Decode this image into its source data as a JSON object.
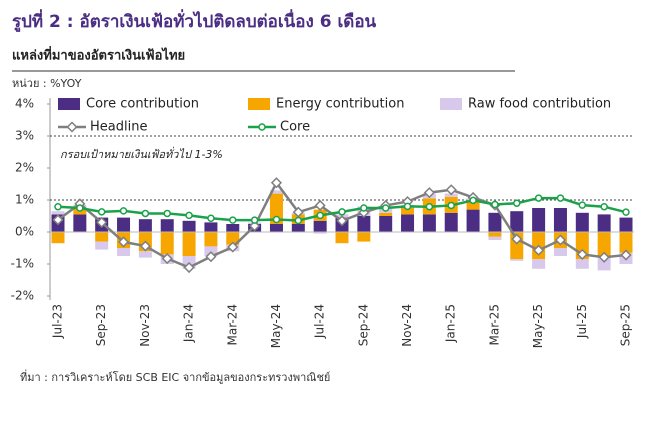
{
  "header": {
    "title": "รูปที่ 2 : อัตราเงินเฟ้อทั่วไปติดลบต่อเนื่อง 6 เดือน",
    "subtitle": "แหล่งที่มาของอัตราเงินเฟ้อไทย",
    "unit": "หน่วย : %YOY"
  },
  "chart_data": {
    "type": "bar",
    "categories": [
      "Jul-23",
      null,
      "Sep-23",
      null,
      "Nov-23",
      null,
      "Jan-24",
      null,
      "Mar-24",
      null,
      "May-24",
      null,
      "Jul-24",
      null,
      "Sep-24",
      null,
      "Nov-24",
      null,
      "Jan-25",
      null,
      "Mar-25",
      null,
      "May-25",
      null,
      "Jul-25",
      null,
      "Sep-25"
    ],
    "series": [
      {
        "name": "Core contribution",
        "type": "bar",
        "color": "#4b2d83",
        "values": [
          0.55,
          0.55,
          0.45,
          0.45,
          0.4,
          0.4,
          0.35,
          0.3,
          0.25,
          0.25,
          0.25,
          0.25,
          0.35,
          0.45,
          0.5,
          0.5,
          0.55,
          0.55,
          0.6,
          0.7,
          0.6,
          0.65,
          0.75,
          0.75,
          0.6,
          0.55,
          0.45
        ]
      },
      {
        "name": "Energy contribution",
        "type": "bar",
        "color": "#f7a600",
        "values": [
          -0.35,
          0.2,
          -0.3,
          -0.5,
          -0.6,
          -0.7,
          -0.75,
          -0.45,
          -0.4,
          0,
          0.95,
          0.3,
          0.35,
          -0.35,
          -0.3,
          0.1,
          0.2,
          0.5,
          0.5,
          0.3,
          -0.15,
          -0.85,
          -0.85,
          -0.5,
          -0.85,
          -0.8,
          -0.65
        ]
      },
      {
        "name": "Raw food contribution",
        "type": "bar",
        "color": "#d8c8ec",
        "values": [
          0.1,
          0.1,
          -0.25,
          -0.25,
          -0.2,
          -0.3,
          -0.4,
          -0.3,
          -0.2,
          0.05,
          0.1,
          0.05,
          -0.05,
          0.1,
          0.3,
          0.2,
          0.1,
          0.15,
          0.1,
          0.05,
          -0.1,
          -0.05,
          -0.3,
          -0.25,
          -0.3,
          -0.4,
          -0.35
        ]
      },
      {
        "name": "Headline",
        "type": "line",
        "marker": "diamond",
        "color": "#7f7f7f",
        "values": [
          0.38,
          0.88,
          0.3,
          -0.31,
          -0.44,
          -0.83,
          -1.11,
          -0.77,
          -0.47,
          0.19,
          1.54,
          0.62,
          0.83,
          0.35,
          0.61,
          0.83,
          0.95,
          1.23,
          1.32,
          1.08,
          0.84,
          -0.22,
          -0.57,
          -0.25,
          -0.7,
          -0.79,
          -0.72
        ]
      },
      {
        "name": "Core",
        "type": "line",
        "marker": "circle",
        "color": "#1aa24a",
        "values": [
          0.79,
          0.75,
          0.63,
          0.66,
          0.58,
          0.58,
          0.52,
          0.43,
          0.37,
          0.37,
          0.39,
          0.36,
          0.52,
          0.63,
          0.75,
          0.75,
          0.8,
          0.79,
          0.83,
          0.99,
          0.86,
          0.9,
          1.06,
          1.06,
          0.84,
          0.79,
          0.62
        ]
      }
    ],
    "ylim": [
      -2,
      4
    ],
    "yticks": [
      {
        "value": -2,
        "label": "-2%"
      },
      {
        "value": -1,
        "label": "-1%"
      },
      {
        "value": 0,
        "label": "0%"
      },
      {
        "value": 1,
        "label": "1%"
      },
      {
        "value": 2,
        "label": "2%"
      },
      {
        "value": 3,
        "label": "3%"
      },
      {
        "value": 4,
        "label": "4%"
      }
    ],
    "reference_lines": [
      1,
      3
    ],
    "annotation": "กรอบเป้าหมายเงินเฟ้อทั่วไป 1-3%"
  },
  "footer": {
    "source": "ที่มา : การวิเคราะห์โดย SCB EIC จากข้อมูลของกระทรวงพาณิชย์"
  }
}
